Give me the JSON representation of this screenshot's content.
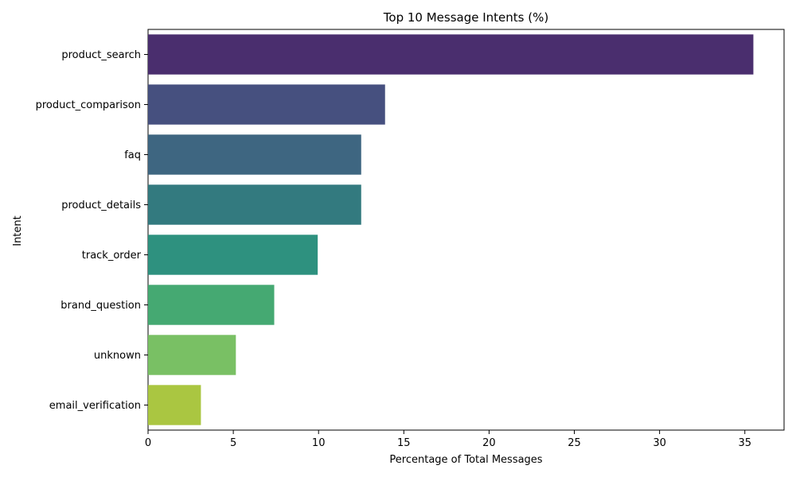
{
  "chart_data": {
    "type": "bar",
    "orientation": "horizontal",
    "title": "Top 10 Message Intents (%)",
    "xlabel": "Percentage of Total Messages",
    "ylabel": "Intent",
    "xlim": [
      0,
      37.3
    ],
    "xticks": [
      0,
      5,
      10,
      15,
      20,
      25,
      30,
      35
    ],
    "grid": false,
    "categories": [
      "product_search",
      "product_comparison",
      "faq",
      "product_details",
      "track_order",
      "brand_question",
      "unknown",
      "email_verification"
    ],
    "values": [
      35.5,
      13.9,
      12.5,
      12.5,
      9.95,
      7.4,
      5.15,
      3.1
    ],
    "colors": [
      "#4a2e6e",
      "#46507f",
      "#3e6681",
      "#337a7f",
      "#2e917f",
      "#45a972",
      "#79c064",
      "#aac641"
    ]
  }
}
